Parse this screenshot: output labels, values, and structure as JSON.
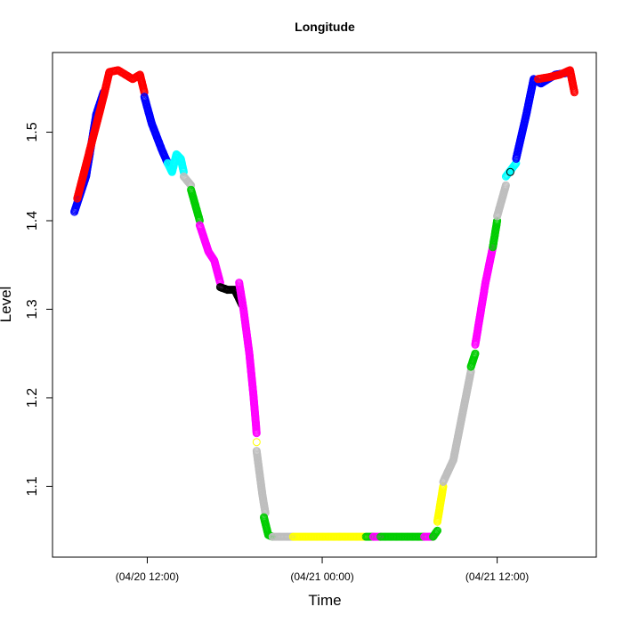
{
  "chart_data": {
    "type": "scatter",
    "title": "Longitude",
    "xlabel": "Time",
    "ylabel": "Level",
    "x_tick_labels": [
      "(04/20 12:00)",
      "(04/21 00:00)",
      "(04/21 12:00)"
    ],
    "x_ticks_hours": [
      12,
      24,
      36
    ],
    "xlim_hours": [
      5.5,
      42.8
    ],
    "y_ticks": [
      1.1,
      1.2,
      1.3,
      1.4,
      1.5
    ],
    "ylim": [
      1.02,
      1.59
    ],
    "grid": false,
    "marker": "open-circle",
    "colors": {
      "blue": "#0000ff",
      "red": "#ff0000",
      "cyan": "#00ffff",
      "gray": "#bebebe",
      "green": "#00cd00",
      "magenta": "#ff00ff",
      "black": "#000000",
      "yellow": "#ffff00"
    },
    "segments": [
      {
        "color": "blue",
        "points": [
          [
            7.0,
            1.41
          ],
          [
            7.8,
            1.45
          ],
          [
            8.5,
            1.52
          ],
          [
            9.0,
            1.545
          ]
        ]
      },
      {
        "color": "red",
        "points": [
          [
            7.2,
            1.425
          ],
          [
            9.0,
            1.54
          ],
          [
            9.4,
            1.568
          ],
          [
            10.0,
            1.57
          ],
          [
            11.0,
            1.56
          ],
          [
            11.5,
            1.565
          ],
          [
            11.8,
            1.545
          ]
        ]
      },
      {
        "color": "blue",
        "points": [
          [
            11.8,
            1.54
          ],
          [
            12.3,
            1.51
          ],
          [
            13.0,
            1.48
          ],
          [
            13.4,
            1.465
          ]
        ]
      },
      {
        "color": "cyan",
        "points": [
          [
            13.4,
            1.465
          ],
          [
            13.7,
            1.455
          ],
          [
            14.0,
            1.475
          ],
          [
            14.3,
            1.47
          ],
          [
            14.5,
            1.455
          ]
        ]
      },
      {
        "color": "gray",
        "points": [
          [
            14.5,
            1.45
          ],
          [
            15.0,
            1.44
          ]
        ]
      },
      {
        "color": "green",
        "points": [
          [
            15.0,
            1.435
          ],
          [
            15.6,
            1.4
          ]
        ]
      },
      {
        "color": "magenta",
        "points": [
          [
            15.6,
            1.395
          ],
          [
            16.2,
            1.365
          ],
          [
            16.6,
            1.355
          ],
          [
            17.0,
            1.33
          ]
        ]
      },
      {
        "color": "black",
        "points": [
          [
            17.0,
            1.325
          ],
          [
            17.5,
            1.322
          ],
          [
            18.0,
            1.322
          ],
          [
            18.5,
            1.305
          ]
        ]
      },
      {
        "color": "magenta",
        "points": [
          [
            18.3,
            1.33
          ],
          [
            18.6,
            1.3
          ],
          [
            19.0,
            1.25
          ],
          [
            19.3,
            1.2
          ],
          [
            19.5,
            1.16
          ]
        ]
      },
      {
        "color": "yellow",
        "points": [
          [
            19.5,
            1.15
          ]
        ]
      },
      {
        "color": "gray",
        "points": [
          [
            19.5,
            1.14
          ],
          [
            19.9,
            1.09
          ],
          [
            20.1,
            1.07
          ]
        ]
      },
      {
        "color": "green",
        "points": [
          [
            20.0,
            1.065
          ],
          [
            20.3,
            1.045
          ],
          [
            20.6,
            1.043
          ]
        ]
      },
      {
        "color": "gray",
        "points": [
          [
            20.6,
            1.043
          ],
          [
            22.0,
            1.043
          ]
        ]
      },
      {
        "color": "yellow",
        "points": [
          [
            22.0,
            1.043
          ],
          [
            27.0,
            1.043
          ]
        ]
      },
      {
        "color": "green",
        "points": [
          [
            27.0,
            1.043
          ],
          [
            27.5,
            1.043
          ]
        ]
      },
      {
        "color": "magenta",
        "points": [
          [
            27.5,
            1.043
          ],
          [
            28.0,
            1.043
          ]
        ]
      },
      {
        "color": "green",
        "points": [
          [
            28.0,
            1.043
          ],
          [
            31.0,
            1.043
          ]
        ]
      },
      {
        "color": "magenta",
        "points": [
          [
            31.0,
            1.043
          ],
          [
            31.6,
            1.043
          ]
        ]
      },
      {
        "color": "green",
        "points": [
          [
            31.6,
            1.043
          ],
          [
            31.9,
            1.05
          ]
        ]
      },
      {
        "color": "yellow",
        "points": [
          [
            31.9,
            1.06
          ],
          [
            32.3,
            1.1
          ]
        ]
      },
      {
        "color": "gray",
        "points": [
          [
            32.3,
            1.105
          ],
          [
            33.0,
            1.13
          ],
          [
            33.6,
            1.18
          ],
          [
            34.2,
            1.23
          ]
        ]
      },
      {
        "color": "green",
        "points": [
          [
            34.2,
            1.235
          ],
          [
            34.5,
            1.25
          ]
        ]
      },
      {
        "color": "magenta",
        "points": [
          [
            34.5,
            1.26
          ],
          [
            35.2,
            1.33
          ],
          [
            35.7,
            1.37
          ]
        ]
      },
      {
        "color": "green",
        "points": [
          [
            35.7,
            1.37
          ],
          [
            36.0,
            1.4
          ]
        ]
      },
      {
        "color": "gray",
        "points": [
          [
            36.0,
            1.405
          ],
          [
            36.6,
            1.44
          ]
        ]
      },
      {
        "color": "cyan",
        "points": [
          [
            36.6,
            1.45
          ],
          [
            37.3,
            1.465
          ]
        ]
      },
      {
        "color": "black",
        "points": [
          [
            36.9,
            1.455
          ]
        ]
      },
      {
        "color": "blue",
        "points": [
          [
            37.3,
            1.47
          ],
          [
            38.0,
            1.52
          ],
          [
            38.5,
            1.56
          ],
          [
            39.0,
            1.555
          ],
          [
            40.0,
            1.565
          ],
          [
            40.8,
            1.567
          ]
        ]
      },
      {
        "color": "red",
        "points": [
          [
            38.8,
            1.56
          ],
          [
            39.5,
            1.562
          ],
          [
            40.3,
            1.565
          ],
          [
            41.0,
            1.57
          ],
          [
            41.3,
            1.545
          ]
        ]
      }
    ]
  }
}
